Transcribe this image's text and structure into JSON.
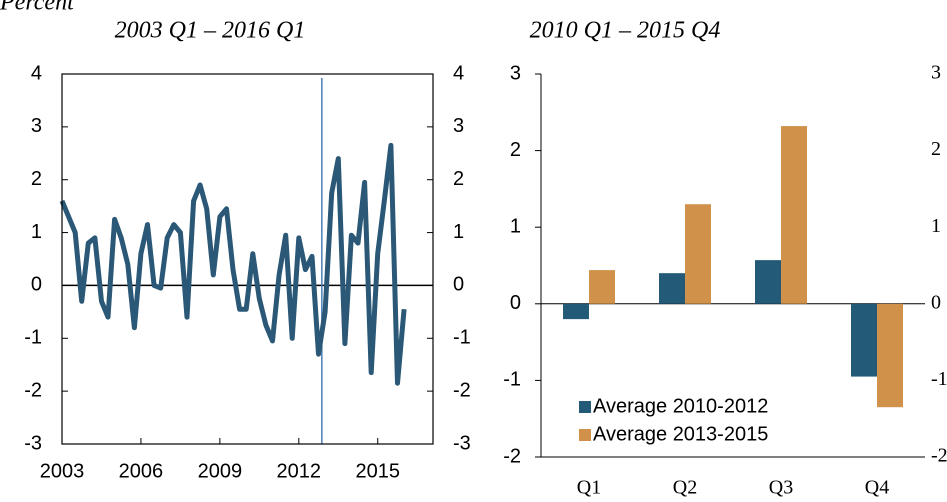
{
  "chart_data": [
    {
      "type": "line",
      "title": "2003 Q1 – 2016 Q1",
      "ylabel": "Percent",
      "x": [
        2003,
        2003.25,
        2003.5,
        2003.75,
        2004,
        2004.25,
        2004.5,
        2004.75,
        2005,
        2005.25,
        2005.5,
        2005.75,
        2006,
        2006.25,
        2006.5,
        2006.75,
        2007,
        2007.25,
        2007.5,
        2007.75,
        2008,
        2008.25,
        2008.5,
        2008.75,
        2009,
        2009.25,
        2009.5,
        2009.75,
        2010,
        2010.25,
        2010.5,
        2010.75,
        2011,
        2011.25,
        2011.5,
        2011.75,
        2012,
        2012.25,
        2012.5,
        2012.75,
        2013,
        2013.25,
        2013.5,
        2013.75,
        2014,
        2014.25,
        2014.5,
        2014.75,
        2015,
        2015.25,
        2015.5,
        2015.75,
        2016
      ],
      "values": [
        1.6,
        1.3,
        1.0,
        -0.3,
        0.8,
        0.9,
        -0.3,
        -0.6,
        1.25,
        0.9,
        0.4,
        -0.8,
        0.6,
        1.15,
        0.0,
        -0.05,
        0.9,
        1.15,
        1.0,
        -0.6,
        1.6,
        1.9,
        1.45,
        0.2,
        1.3,
        1.45,
        0.3,
        -0.45,
        -0.45,
        0.6,
        -0.25,
        -0.75,
        -1.05,
        0.2,
        0.95,
        -1.0,
        0.9,
        0.3,
        0.55,
        -1.3,
        -0.5,
        1.75,
        2.4,
        -1.1,
        0.95,
        0.8,
        1.95,
        -1.65,
        0.6,
        1.6,
        2.65,
        -1.85,
        -0.45
      ],
      "color": "#2b5876",
      "vline": 2012.875,
      "vline_color": "#4a7fb5",
      "xlim": [
        2003,
        2017.1
      ],
      "xticks": [
        2003,
        2006,
        2009,
        2012,
        2015
      ],
      "ylim": [
        -3,
        4
      ],
      "yticks": [
        -3,
        -2,
        -1,
        0,
        1,
        2,
        3,
        4
      ]
    },
    {
      "type": "bar",
      "title": "2010 Q1 – 2015 Q4",
      "categories": [
        "Q1",
        "Q2",
        "Q3",
        "Q4"
      ],
      "series": [
        {
          "name": "Average 2010-2012",
          "color": "#225a78",
          "values": [
            -0.2,
            0.4,
            0.57,
            -0.95
          ]
        },
        {
          "name": "Average 2013-2015",
          "color": "#d0914a",
          "values": [
            0.44,
            1.3,
            2.32,
            -1.35
          ]
        }
      ],
      "ylim": [
        -2,
        3
      ],
      "yticks": [
        -2,
        -1,
        0,
        1,
        2,
        3
      ],
      "legend": "lower left"
    }
  ]
}
